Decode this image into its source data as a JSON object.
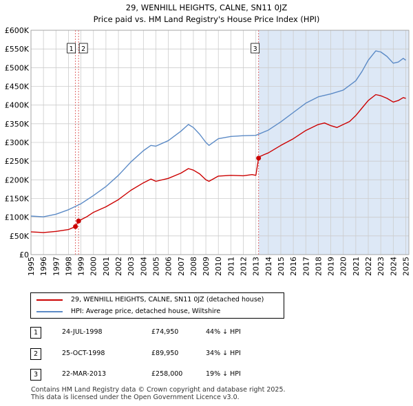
{
  "chart_data": {
    "type": "line",
    "title": "29, WENHILL HEIGHTS, CALNE, SN11 0JZ",
    "subtitle": "Price paid vs. HM Land Registry's House Price Index (HPI)",
    "xlim": [
      1995,
      2025.25
    ],
    "ylim": [
      0,
      600000
    ],
    "y_ticks": [
      0,
      50000,
      100000,
      150000,
      200000,
      250000,
      300000,
      350000,
      400000,
      450000,
      500000,
      550000,
      600000
    ],
    "y_tick_labels": [
      "£0",
      "£50K",
      "£100K",
      "£150K",
      "£200K",
      "£250K",
      "£300K",
      "£350K",
      "£400K",
      "£450K",
      "£500K",
      "£550K",
      "£600K"
    ],
    "x_ticks": [
      1995,
      1996,
      1997,
      1998,
      1999,
      2000,
      2001,
      2002,
      2003,
      2004,
      2005,
      2006,
      2007,
      2008,
      2009,
      2010,
      2011,
      2012,
      2013,
      2014,
      2015,
      2016,
      2017,
      2018,
      2019,
      2020,
      2021,
      2022,
      2023,
      2024,
      2025
    ],
    "x_tick_labels": [
      "1995",
      "1996",
      "1997",
      "1998",
      "1999",
      "2000",
      "2001",
      "2002",
      "2003",
      "2004",
      "2005",
      "2006",
      "2007",
      "2008",
      "2009",
      "2010",
      "2011",
      "2012",
      "2013",
      "2014",
      "2015",
      "2016",
      "2017",
      "2018",
      "2019",
      "2020",
      "2021",
      "2022",
      "2023",
      "2024",
      "2025"
    ],
    "grid": true,
    "colors": {
      "property": "#cc0000",
      "hpi": "#5b8ac6",
      "shade": "#dde8f6",
      "vline": "#e06666"
    },
    "series": [
      {
        "name": "29, WENHILL HEIGHTS, CALNE, SN11 0JZ (detached house)",
        "x": [
          1995.0,
          1996.0,
          1997.0,
          1998.0,
          1998.56,
          1998.81,
          1999.5,
          2000.0,
          2001.0,
          2002.0,
          2003.0,
          2004.0,
          2004.6,
          2005.0,
          2006.0,
          2007.0,
          2007.6,
          2008.0,
          2008.5,
          2009.0,
          2009.25,
          2010.0,
          2011.0,
          2012.0,
          2012.7,
          2013.0,
          2013.22,
          2013.3,
          2013.7,
          2014.0,
          2015.0,
          2016.0,
          2017.0,
          2018.0,
          2018.5,
          2019.0,
          2019.5,
          2020.0,
          2020.5,
          2021.0,
          2021.5,
          2022.0,
          2022.6,
          2023.0,
          2023.5,
          2024.0,
          2024.4,
          2024.8,
          2025.0
        ],
        "values": [
          61000,
          59000,
          62000,
          67000,
          74950,
          89950,
          102000,
          113000,
          128000,
          147000,
          172000,
          192000,
          202000,
          196000,
          204000,
          218000,
          230000,
          226000,
          216000,
          200000,
          196000,
          210000,
          212000,
          211000,
          214000,
          212000,
          258000,
          262000,
          268000,
          272000,
          292000,
          310000,
          332000,
          348000,
          352000,
          345000,
          340000,
          348000,
          356000,
          372000,
          392000,
          412000,
          428000,
          425000,
          418000,
          408000,
          412000,
          420000,
          418000
        ]
      },
      {
        "name": "HPI: Average price, detached house, Wiltshire",
        "x": [
          1995.0,
          1996.0,
          1997.0,
          1998.0,
          1999.0,
          2000.0,
          2001.0,
          2002.0,
          2003.0,
          2004.0,
          2004.6,
          2005.0,
          2006.0,
          2007.0,
          2007.6,
          2008.0,
          2008.5,
          2009.0,
          2009.25,
          2010.0,
          2011.0,
          2012.0,
          2013.0,
          2014.0,
          2015.0,
          2016.0,
          2017.0,
          2018.0,
          2019.0,
          2020.0,
          2021.0,
          2021.5,
          2022.0,
          2022.6,
          2023.0,
          2023.5,
          2024.0,
          2024.4,
          2024.8,
          2025.0
        ],
        "values": [
          103000,
          101000,
          108000,
          120000,
          136000,
          158000,
          182000,
          212000,
          248000,
          278000,
          292000,
          290000,
          305000,
          330000,
          348000,
          340000,
          322000,
          300000,
          292000,
          310000,
          316000,
          318000,
          319000,
          333000,
          355000,
          380000,
          405000,
          422000,
          430000,
          440000,
          465000,
          490000,
          520000,
          545000,
          542000,
          530000,
          512000,
          515000,
          525000,
          520000
        ]
      }
    ],
    "sales": [
      {
        "label": "1",
        "x": 1998.56,
        "value": 74950
      },
      {
        "label": "2",
        "x": 1998.81,
        "value": 89950
      },
      {
        "label": "3",
        "x": 2013.22,
        "value": 258000
      }
    ]
  },
  "legend": {
    "property_label": "29, WENHILL HEIGHTS, CALNE, SN11 0JZ (detached house)",
    "hpi_label": "HPI: Average price, detached house, Wiltshire"
  },
  "transactions": [
    {
      "num": "1",
      "date": "24-JUL-1998",
      "price": "£74,950",
      "hpi": "44% ↓ HPI"
    },
    {
      "num": "2",
      "date": "25-OCT-1998",
      "price": "£89,950",
      "hpi": "34% ↓ HPI"
    },
    {
      "num": "3",
      "date": "22-MAR-2013",
      "price": "£258,000",
      "hpi": "19% ↓ HPI"
    }
  ],
  "footer": {
    "line1": "Contains HM Land Registry data © Crown copyright and database right 2025.",
    "line2": "This data is licensed under the Open Government Licence v3.0."
  }
}
